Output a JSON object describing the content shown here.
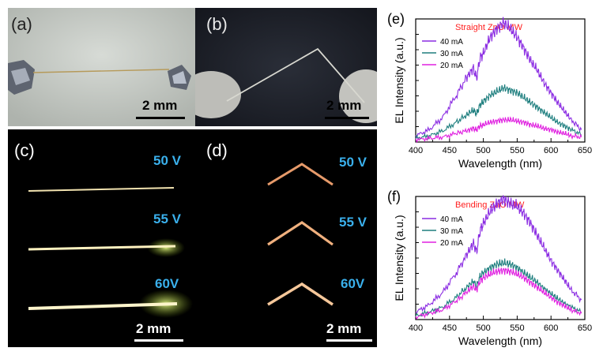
{
  "photos": {
    "a": {
      "label": "(a)",
      "scale": "2 mm"
    },
    "b": {
      "label": "(b)",
      "scale": "2 mm"
    },
    "c": {
      "label": "(c)",
      "scale": "2 mm",
      "voltages": [
        "50 V",
        "55 V",
        "60V"
      ]
    },
    "d": {
      "label": "(d)",
      "scale": "2 mm",
      "voltages": [
        "50 V",
        "55 V",
        "60V"
      ]
    }
  },
  "colors": {
    "label_blue": "#3ab0ec",
    "title_red": "#ff2020",
    "series_40": "#8a2be2",
    "series_30": "#1f7f7f",
    "series_20": "#e020e0"
  },
  "chart_data": [
    {
      "panel_label": "(e)",
      "type": "line",
      "title": "Straight ZnO MW",
      "xlabel": "Wavelength (nm)",
      "ylabel": "EL Intensity (a.u.)",
      "xlim": [
        400,
        650
      ],
      "ylim": [
        0,
        1.0
      ],
      "xticks": [
        400,
        450,
        500,
        550,
        600,
        650
      ],
      "x": [
        400,
        420,
        440,
        460,
        475,
        485,
        490,
        495,
        500,
        510,
        520,
        530,
        540,
        550,
        560,
        570,
        580,
        590,
        600,
        610,
        620,
        630,
        645
      ],
      "series": [
        {
          "name": "40 mA",
          "values": [
            0.05,
            0.1,
            0.2,
            0.38,
            0.52,
            0.6,
            0.52,
            0.68,
            0.72,
            0.85,
            0.92,
            0.97,
            0.92,
            0.85,
            0.76,
            0.66,
            0.58,
            0.48,
            0.4,
            0.32,
            0.25,
            0.18,
            0.1
          ]
        },
        {
          "name": "30 mA",
          "values": [
            0.03,
            0.05,
            0.09,
            0.16,
            0.22,
            0.26,
            0.23,
            0.3,
            0.33,
            0.38,
            0.41,
            0.44,
            0.42,
            0.4,
            0.36,
            0.32,
            0.28,
            0.24,
            0.2,
            0.16,
            0.13,
            0.1,
            0.06
          ]
        },
        {
          "name": "20 mA",
          "values": [
            0.02,
            0.03,
            0.04,
            0.07,
            0.09,
            0.11,
            0.1,
            0.13,
            0.14,
            0.16,
            0.17,
            0.18,
            0.18,
            0.17,
            0.16,
            0.14,
            0.13,
            0.11,
            0.1,
            0.08,
            0.07,
            0.05,
            0.04
          ]
        }
      ]
    },
    {
      "panel_label": "(f)",
      "type": "line",
      "title": "Bending ZnO MW",
      "xlabel": "Wavelength (nm)",
      "ylabel": "EL Intensity (a.u.)",
      "xlim": [
        400,
        650
      ],
      "ylim": [
        0,
        1.0
      ],
      "xticks": [
        400,
        450,
        500,
        550,
        600,
        650
      ],
      "x": [
        400,
        420,
        440,
        460,
        475,
        485,
        490,
        495,
        500,
        510,
        520,
        530,
        540,
        550,
        560,
        570,
        580,
        590,
        600,
        610,
        620,
        630,
        645
      ],
      "series": [
        {
          "name": "40 mA",
          "values": [
            0.06,
            0.12,
            0.22,
            0.38,
            0.52,
            0.62,
            0.55,
            0.72,
            0.78,
            0.88,
            0.94,
            0.98,
            0.94,
            0.92,
            0.86,
            0.78,
            0.68,
            0.58,
            0.48,
            0.4,
            0.32,
            0.24,
            0.16
          ]
        },
        {
          "name": "30 mA",
          "values": [
            0.03,
            0.06,
            0.1,
            0.18,
            0.26,
            0.31,
            0.27,
            0.35,
            0.38,
            0.42,
            0.45,
            0.46,
            0.45,
            0.42,
            0.38,
            0.34,
            0.3,
            0.25,
            0.21,
            0.17,
            0.13,
            0.1,
            0.06
          ]
        },
        {
          "name": "20 mA",
          "values": [
            0.02,
            0.05,
            0.08,
            0.15,
            0.22,
            0.27,
            0.24,
            0.31,
            0.34,
            0.37,
            0.39,
            0.4,
            0.39,
            0.37,
            0.34,
            0.3,
            0.26,
            0.22,
            0.18,
            0.14,
            0.11,
            0.08,
            0.05
          ]
        }
      ]
    }
  ]
}
